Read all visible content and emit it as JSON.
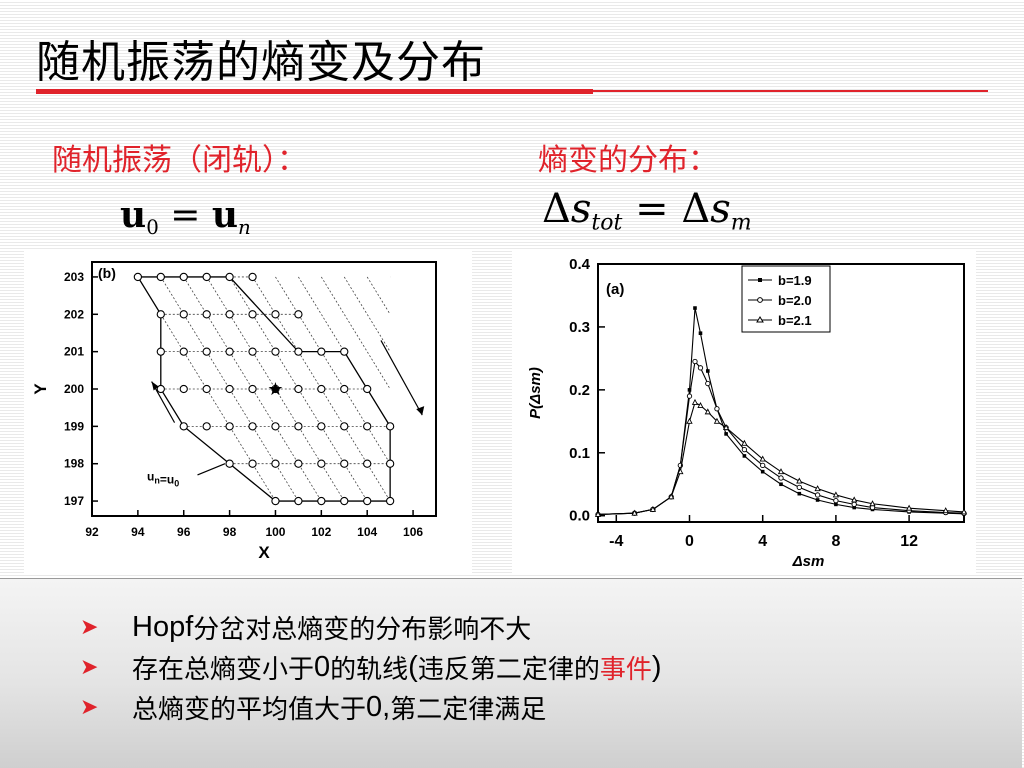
{
  "slide": {
    "title": "随机振荡的熵变及分布",
    "left_heading": "随机振荡（闭轨）：",
    "right_heading": "熵变的分布：",
    "formula_left": {
      "a": "u",
      "a_sub": "0",
      "eq": "=",
      "b": "u",
      "b_sub": "n"
    },
    "formula_right": {
      "d1": "Δ",
      "s1": "s",
      "s1_sub": "tot",
      "eq": "=",
      "d2": "Δ",
      "s2": "s",
      "s2_sub": "m"
    }
  },
  "colors": {
    "accent_red": "#e0232b",
    "panel_gray": "#e4e4e4"
  },
  "icons": {
    "bullet": "arrowhead-bullet-icon"
  },
  "bullets": [
    {
      "p1": "Hopf",
      "p2": " 分岔对总熵变的分布影响不大"
    },
    {
      "p1": "存在总熵变小于",
      "p2": "0",
      "p3": " 的轨线",
      "p4": "(",
      "p5": "违反第二定律的",
      "p6": "事件",
      "p7": ")"
    },
    {
      "p1": "总熵变的平均值大于",
      "p2": "0,",
      "p3": "第二定律满足"
    }
  ],
  "chart_data": [
    {
      "type": "scatter",
      "panel_label": "(b)",
      "xlabel": "X",
      "ylabel": "Y",
      "xlim": [
        92,
        107
      ],
      "ylim": [
        196.6,
        203.4
      ],
      "x_ticks": [
        92,
        94,
        96,
        98,
        100,
        102,
        104,
        106
      ],
      "y_ticks": [
        197,
        198,
        199,
        200,
        201,
        202,
        203
      ],
      "marker_label": "★",
      "annotation": {
        "base": "u",
        "sub1": "n",
        "eq": "=u",
        "sub2": "0"
      },
      "lattice_rows": [
        {
          "y": 203,
          "x": [
            94,
            95,
            96,
            97,
            98,
            99
          ]
        },
        {
          "y": 202,
          "x": [
            95,
            96,
            97,
            98,
            99,
            100,
            101
          ]
        },
        {
          "y": 201,
          "x": [
            95,
            96,
            97,
            98,
            99,
            100,
            101,
            102,
            103
          ]
        },
        {
          "y": 200,
          "x": [
            95,
            96,
            97,
            98,
            99,
            100,
            101,
            102,
            103,
            104
          ]
        },
        {
          "y": 199,
          "x": [
            96,
            97,
            98,
            99,
            100,
            101,
            102,
            103,
            104,
            105
          ]
        },
        {
          "y": 198,
          "x": [
            98,
            99,
            100,
            101,
            102,
            103,
            104,
            105
          ]
        },
        {
          "y": 197,
          "x": [
            100,
            101,
            102,
            103,
            104,
            105
          ]
        }
      ],
      "outline": [
        [
          94,
          203
        ],
        [
          98,
          203
        ],
        [
          101,
          201
        ],
        [
          103,
          201
        ],
        [
          105,
          199
        ],
        [
          105,
          198
        ],
        [
          105,
          197
        ],
        [
          100,
          197
        ],
        [
          98,
          198
        ],
        [
          96,
          199
        ],
        [
          95,
          200
        ],
        [
          95,
          201
        ],
        [
          95,
          202
        ],
        [
          94,
          203
        ]
      ],
      "star": [
        100,
        200
      ]
    },
    {
      "type": "line",
      "panel_label": "(a)",
      "xlabel": "Δs_m",
      "ylabel": "P(Δs_m)",
      "xlim": [
        -5,
        15
      ],
      "ylim": [
        -0.01,
        0.4
      ],
      "x_ticks": [
        -4,
        0,
        4,
        8,
        12
      ],
      "y_ticks": [
        0.0,
        0.1,
        0.2,
        0.3,
        0.4
      ],
      "x_tick_labels": [
        "-4",
        "0",
        "4",
        "8",
        "12"
      ],
      "y_tick_labels": [
        "0.0",
        "0.1",
        "0.2",
        "0.3",
        "0.4"
      ],
      "series": [
        {
          "name": "b=1.9",
          "marker": "square",
          "x": [
            -5,
            -3,
            -2,
            -1,
            -0.5,
            0,
            0.3,
            0.6,
            1,
            1.5,
            2,
            3,
            4,
            5,
            6,
            7,
            8,
            9,
            10,
            12,
            14,
            15
          ],
          "y": [
            0.002,
            0.004,
            0.01,
            0.03,
            0.08,
            0.2,
            0.33,
            0.29,
            0.23,
            0.17,
            0.13,
            0.095,
            0.07,
            0.05,
            0.035,
            0.025,
            0.018,
            0.013,
            0.01,
            0.006,
            0.004,
            0.003
          ]
        },
        {
          "name": "b=2.0",
          "marker": "circle",
          "x": [
            -5,
            -3,
            -2,
            -1,
            -0.5,
            0,
            0.3,
            0.6,
            1,
            1.5,
            2,
            3,
            4,
            5,
            6,
            7,
            8,
            9,
            10,
            12,
            14,
            15
          ],
          "y": [
            0.002,
            0.004,
            0.01,
            0.03,
            0.08,
            0.19,
            0.245,
            0.235,
            0.21,
            0.17,
            0.14,
            0.105,
            0.08,
            0.06,
            0.045,
            0.033,
            0.024,
            0.018,
            0.013,
            0.008,
            0.005,
            0.004
          ]
        },
        {
          "name": "b=2.1",
          "marker": "triangle",
          "x": [
            -5,
            -3,
            -2,
            -1,
            -0.5,
            0,
            0.3,
            0.6,
            1,
            1.5,
            2,
            3,
            4,
            5,
            6,
            7,
            8,
            9,
            10,
            12,
            14,
            15
          ],
          "y": [
            0.002,
            0.004,
            0.01,
            0.03,
            0.07,
            0.15,
            0.18,
            0.175,
            0.165,
            0.15,
            0.14,
            0.115,
            0.09,
            0.07,
            0.055,
            0.043,
            0.033,
            0.025,
            0.019,
            0.012,
            0.008,
            0.006
          ]
        }
      ]
    }
  ]
}
